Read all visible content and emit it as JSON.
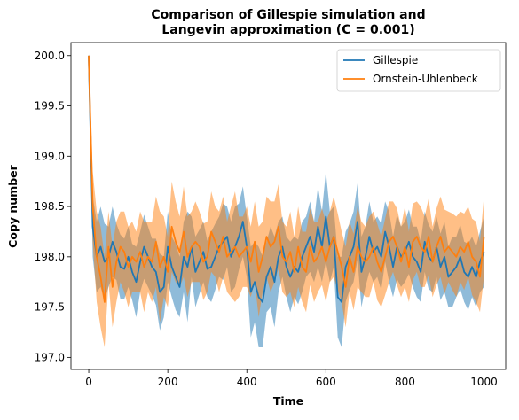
{
  "chart_data": {
    "type": "line",
    "title": "Comparison of Gillespie simulation and\nLangevin approximation (C = 0.001)",
    "xlabel": "Time",
    "ylabel": "Copy number",
    "xlim": [
      -45,
      1055
    ],
    "ylim": [
      196.88,
      200.13
    ],
    "xticks": [
      0,
      200,
      400,
      600,
      800,
      1000
    ],
    "yticks": [
      197.0,
      197.5,
      198.0,
      198.5,
      199.0,
      199.5,
      200.0
    ],
    "xtick_labels": [
      "0",
      "200",
      "400",
      "600",
      "800",
      "1000"
    ],
    "ytick_labels": [
      "197.0",
      "197.5",
      "198.0",
      "198.5",
      "199.0",
      "199.5",
      "200.0"
    ],
    "legend_position": "top-right",
    "grid": false,
    "x": [
      0,
      10,
      20,
      30,
      40,
      50,
      60,
      70,
      80,
      90,
      100,
      110,
      120,
      130,
      140,
      150,
      160,
      170,
      180,
      190,
      200,
      210,
      220,
      230,
      240,
      250,
      260,
      270,
      280,
      290,
      300,
      310,
      320,
      330,
      340,
      350,
      360,
      370,
      380,
      390,
      400,
      410,
      420,
      430,
      440,
      450,
      460,
      470,
      480,
      490,
      500,
      510,
      520,
      530,
      540,
      550,
      560,
      570,
      580,
      590,
      600,
      610,
      620,
      630,
      640,
      650,
      660,
      670,
      680,
      690,
      700,
      710,
      720,
      730,
      740,
      750,
      760,
      770,
      780,
      790,
      800,
      810,
      820,
      830,
      840,
      850,
      860,
      870,
      880,
      890,
      900,
      910,
      920,
      930,
      940,
      950,
      960,
      970,
      980,
      990,
      1000
    ],
    "series": [
      {
        "name": "Gillespie",
        "color": "#1f77b4",
        "band_color": "#1f77b4",
        "band_opacity": 0.5,
        "values": [
          200.0,
          198.3,
          198.0,
          198.1,
          197.95,
          198.0,
          198.15,
          198.05,
          197.9,
          197.88,
          198.0,
          197.85,
          197.75,
          197.95,
          198.1,
          198.0,
          197.9,
          197.85,
          197.65,
          197.7,
          198.1,
          197.9,
          197.8,
          197.7,
          198.0,
          197.9,
          198.1,
          197.85,
          197.95,
          198.05,
          197.88,
          197.9,
          198.0,
          198.1,
          198.15,
          198.2,
          198.0,
          198.1,
          198.2,
          198.35,
          198.1,
          197.65,
          197.75,
          197.6,
          197.55,
          197.8,
          197.9,
          197.75,
          198.0,
          198.1,
          197.9,
          197.8,
          197.9,
          197.85,
          198.0,
          198.1,
          198.2,
          198.05,
          198.3,
          198.1,
          198.4,
          198.1,
          198.2,
          197.6,
          197.55,
          197.9,
          198.0,
          198.1,
          198.35,
          197.85,
          198.0,
          198.2,
          198.05,
          198.1,
          198.0,
          198.25,
          198.1,
          197.9,
          198.1,
          198.0,
          198.05,
          198.15,
          198.0,
          197.95,
          197.85,
          198.15,
          198.0,
          197.95,
          198.1,
          197.9,
          198.0,
          197.8,
          197.85,
          197.9,
          198.0,
          197.85,
          197.8,
          197.9,
          197.8,
          197.95,
          198.05
        ],
        "band_halfwidth": [
          0.02,
          0.3,
          0.35,
          0.4,
          0.38,
          0.3,
          0.35,
          0.28,
          0.32,
          0.3,
          0.3,
          0.28,
          0.35,
          0.3,
          0.32,
          0.3,
          0.28,
          0.33,
          0.38,
          0.3,
          0.35,
          0.3,
          0.33,
          0.3,
          0.35,
          0.55,
          0.3,
          0.35,
          0.32,
          0.3,
          0.28,
          0.35,
          0.33,
          0.3,
          0.38,
          0.3,
          0.35,
          0.4,
          0.33,
          0.35,
          0.3,
          0.45,
          0.4,
          0.5,
          0.45,
          0.35,
          0.4,
          0.45,
          0.35,
          0.3,
          0.3,
          0.35,
          0.3,
          0.32,
          0.35,
          0.3,
          0.35,
          0.3,
          0.4,
          0.35,
          0.45,
          0.35,
          0.3,
          0.4,
          0.45,
          0.35,
          0.33,
          0.35,
          0.38,
          0.35,
          0.3,
          0.35,
          0.3,
          0.3,
          0.33,
          0.3,
          0.35,
          0.3,
          0.32,
          0.3,
          0.3,
          0.32,
          0.3,
          0.35,
          0.3,
          0.3,
          0.32,
          0.3,
          0.3,
          0.33,
          0.35,
          0.3,
          0.35,
          0.3,
          0.32,
          0.3,
          0.33,
          0.3,
          0.3,
          0.3,
          0.35
        ]
      },
      {
        "name": "Ornstein-Uhlenbeck",
        "color": "#ff7f0e",
        "band_color": "#ff7f0e",
        "band_opacity": 0.5,
        "values": [
          200.0,
          198.5,
          198.0,
          197.8,
          197.55,
          198.1,
          197.7,
          197.95,
          198.1,
          198.05,
          197.9,
          198.0,
          197.95,
          198.05,
          197.9,
          198.0,
          197.95,
          198.15,
          197.9,
          198.0,
          197.85,
          198.3,
          198.15,
          198.05,
          198.25,
          198.0,
          198.1,
          198.15,
          198.1,
          197.95,
          198.0,
          198.25,
          198.15,
          198.05,
          198.2,
          198.0,
          198.05,
          198.1,
          198.0,
          198.05,
          198.1,
          197.95,
          198.15,
          197.85,
          198.0,
          198.2,
          198.1,
          198.15,
          198.3,
          198.0,
          197.95,
          198.05,
          197.85,
          198.1,
          197.9,
          197.85,
          198.1,
          197.95,
          198.0,
          198.1,
          197.95,
          198.1,
          198.2,
          198.05,
          197.9,
          197.7,
          198.0,
          197.85,
          198.1,
          198.0,
          197.95,
          198.0,
          198.1,
          197.95,
          197.85,
          198.0,
          198.15,
          198.2,
          198.1,
          197.95,
          198.1,
          197.9,
          198.15,
          198.2,
          198.1,
          198.05,
          198.2,
          197.95,
          198.1,
          198.2,
          198.05,
          198.1,
          198.05,
          198.0,
          198.1,
          198.05,
          198.15,
          198.0,
          197.95,
          197.8,
          198.2
        ],
        "band_halfwidth": [
          0.02,
          0.35,
          0.45,
          0.5,
          0.45,
          0.35,
          0.4,
          0.4,
          0.35,
          0.4,
          0.4,
          0.35,
          0.3,
          0.4,
          0.45,
          0.35,
          0.4,
          0.45,
          0.55,
          0.4,
          0.35,
          0.45,
          0.4,
          0.35,
          0.45,
          0.4,
          0.35,
          0.4,
          0.35,
          0.38,
          0.35,
          0.4,
          0.35,
          0.4,
          0.4,
          0.35,
          0.45,
          0.55,
          0.4,
          0.35,
          0.4,
          0.35,
          0.4,
          0.45,
          0.35,
          0.4,
          0.45,
          0.4,
          0.42,
          0.35,
          0.35,
          0.4,
          0.35,
          0.4,
          0.35,
          0.4,
          0.38,
          0.4,
          0.35,
          0.38,
          0.4,
          0.35,
          0.4,
          0.38,
          0.35,
          0.4,
          0.35,
          0.38,
          0.4,
          0.35,
          0.35,
          0.4,
          0.35,
          0.38,
          0.35,
          0.38,
          0.4,
          0.35,
          0.38,
          0.35,
          0.4,
          0.35,
          0.38,
          0.35,
          0.4,
          0.35,
          0.38,
          0.35,
          0.38,
          0.4,
          0.42,
          0.35,
          0.38,
          0.4,
          0.35,
          0.38,
          0.35,
          0.38,
          0.4,
          0.35,
          0.4
        ]
      }
    ]
  }
}
